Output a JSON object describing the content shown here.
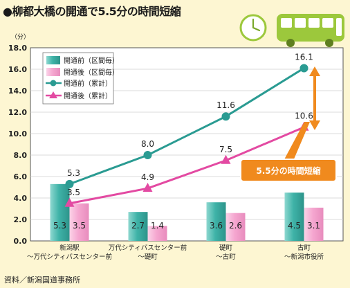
{
  "title": "●柳都大橋の開通で5.5分の時間短縮",
  "source": "資料／新潟国道事務所",
  "icons": [
    "clock-icon",
    "bus-icon"
  ],
  "colors": {
    "teal": "#2a9b92",
    "pink": "#e34aa2",
    "teal_bar": "#47b9ae",
    "pink_bar": "#f4a6cf",
    "orange": "#f08a1e",
    "background": "#fdf6d2"
  },
  "chart_data": {
    "type": "bar",
    "unit_label": "（分）",
    "categories": [
      [
        "新潟駅",
        "～万代シティバスセンター前"
      ],
      [
        "万代シティバスセンター前",
        "～礎町"
      ],
      [
        "礎町",
        "～古町"
      ],
      [
        "古町",
        "～新潟市役所"
      ]
    ],
    "ylim": [
      0,
      18
    ],
    "yticks": [
      "0.0",
      "2.0",
      "4.0",
      "6.0",
      "8.0",
      "10.0",
      "12.0",
      "14.0",
      "16.0",
      "18.0"
    ],
    "grid": true,
    "legend_position": "top-left",
    "series": [
      {
        "name": "開通前（区間毎）",
        "kind": "bar",
        "values": [
          5.3,
          2.7,
          3.6,
          4.5
        ]
      },
      {
        "name": "開通後（区間毎）",
        "kind": "bar",
        "values": [
          3.5,
          1.4,
          2.6,
          3.1
        ]
      },
      {
        "name": "開通前（累計）",
        "kind": "line",
        "marker": "circle",
        "values": [
          5.3,
          8.0,
          11.6,
          16.1
        ]
      },
      {
        "name": "開通後（累計）",
        "kind": "line",
        "marker": "triangle",
        "values": [
          3.5,
          4.9,
          7.5,
          10.6
        ]
      }
    ],
    "bar_labels": [
      [
        "5.3",
        "2.7",
        "3.6",
        "4.5"
      ],
      [
        "3.5",
        "1.4",
        "2.6",
        "3.1"
      ]
    ],
    "line_labels": [
      [
        "5.3",
        "8.0",
        "11.6",
        "16.1"
      ],
      [
        "3.5",
        "4.9",
        "7.5",
        "10.6"
      ]
    ],
    "annotation": "5.5分の時間短縮"
  }
}
